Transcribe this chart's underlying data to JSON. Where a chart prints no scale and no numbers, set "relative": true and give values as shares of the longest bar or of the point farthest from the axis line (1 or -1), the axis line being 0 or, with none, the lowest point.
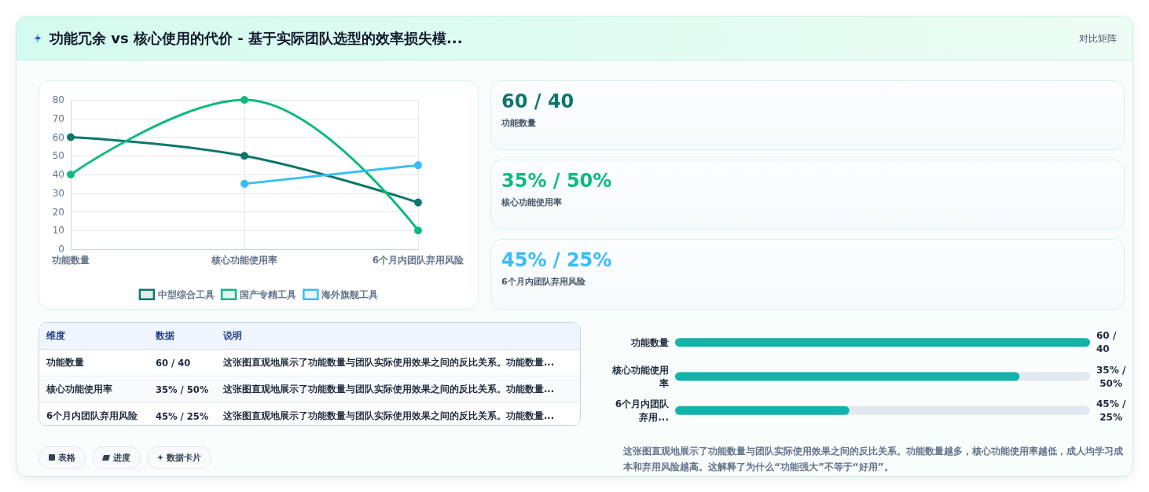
{
  "chart_data": [
    {
      "type": "other",
      "title": "功能冗余 vs 核心使用的代价 - 基于实际团队选型的效率损失模...",
      "subtitle": "对比矩阵"
    },
    {
      "type": "line",
      "categories": [
        "功能数量",
        "核心功能使用率",
        "6个月内团队弃用风险"
      ],
      "series": [
        {
          "name": "中型综合工具",
          "color": "#0f766e",
          "values": [
            60,
            50,
            25
          ]
        },
        {
          "name": "国产专精工具",
          "color": "#10b981",
          "values": [
            40,
            80,
            10
          ]
        },
        {
          "name": "海外旗舰工具",
          "color": "#38bdf8",
          "values": [
            null,
            35,
            45
          ]
        }
      ],
      "ylim": [
        0,
        80
      ],
      "yticks": [
        0,
        10,
        20,
        30,
        40,
        50,
        60,
        70,
        80
      ],
      "grid": true,
      "legend": "bottom",
      "marker": "circle"
    },
    {
      "type": "other",
      "title": "60 / 40",
      "subtitle": "功能数量",
      "color": "#0f766e"
    },
    {
      "type": "other",
      "title": "35% / 50%",
      "subtitle": "核心功能使用率",
      "color": "#10b981"
    },
    {
      "type": "other",
      "title": "45% / 25%",
      "subtitle": "6个月内团队弃用风险",
      "color": "#38bdf8"
    },
    {
      "type": "other",
      "categories": [
        "维度",
        "数据",
        "说明"
      ],
      "annotations": [
        "功能数量",
        "60 / 40",
        "这张图直观地展示了功能数量与团队实际使用效果之间的反比关系。功能数量...",
        "核心功能使用率",
        "35% / 50%",
        "这张图直观地展示了功能数量与团队实际使用效果之间的反比关系。功能数量...",
        "6个月内团队弃用风险",
        "45% / 25%",
        "这张图直观地展示了功能数量与团队实际使用效果之间的反比关系。功能数量..."
      ]
    },
    {
      "type": "bar",
      "orientation": "horizontal",
      "relative": true,
      "categories": [
        "功能数量",
        "核心功能使用率",
        "6个月内团队弃用..."
      ],
      "values": [
        1,
        0.83,
        0.42
      ],
      "color": "#12b3a8",
      "annotations": [
        "60 / 40",
        "35% / 50%",
        "45% / 25%",
        "这张图直观地展示了功能数量与团队实际使用效果之间的反比关系。功能数量越多，核心功能使用率越低，成人均学习成本和弃用风险越高。这解释了为什么“功能强大”不等于“好用”。"
      ]
    },
    {
      "type": "other",
      "annotations": [
        "表格",
        "进度",
        "数据卡片"
      ]
    }
  ]
}
